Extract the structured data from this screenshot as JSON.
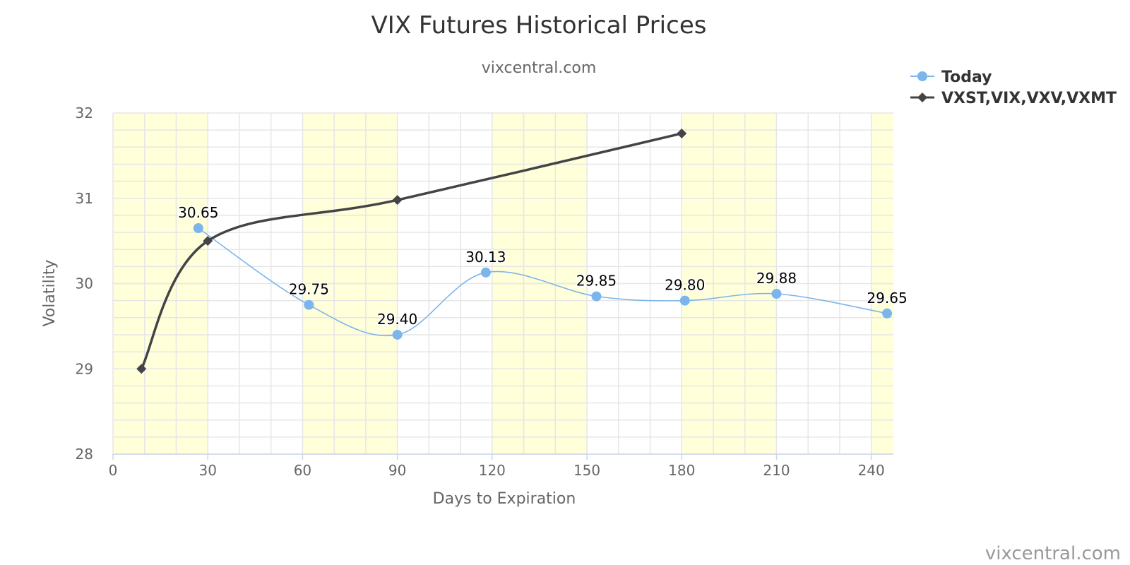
{
  "chart_data": {
    "type": "line",
    "title": "VIX Futures Historical Prices",
    "subtitle": "vixcentral.com",
    "xlabel": "Days to Expiration",
    "ylabel": "Volatility",
    "xlim": [
      0,
      247
    ],
    "ylim": [
      28,
      32
    ],
    "x_ticks": [
      0,
      30,
      60,
      90,
      120,
      150,
      180,
      210,
      240
    ],
    "y_ticks": [
      28,
      29,
      30,
      31,
      32
    ],
    "grid": true,
    "legend_position": "top-right",
    "x_bands": [
      [
        0,
        30
      ],
      [
        60,
        90
      ],
      [
        120,
        150
      ],
      [
        180,
        210
      ],
      [
        240,
        247
      ]
    ],
    "band_color": "#ffffd9",
    "series": [
      {
        "name": "Today",
        "color": "#7cb5ec",
        "marker": "circle",
        "x": [
          27,
          62,
          90,
          118,
          153,
          181,
          210,
          245
        ],
        "values": [
          30.65,
          29.75,
          29.4,
          30.13,
          29.85,
          29.8,
          29.88,
          29.65
        ],
        "labels": [
          "30.65",
          "29.75",
          "29.40",
          "30.13",
          "29.85",
          "29.80",
          "29.88",
          "29.65"
        ]
      },
      {
        "name": "VXST,VIX,VXV,VXMT",
        "color": "#434348",
        "marker": "diamond",
        "x": [
          9,
          30,
          90,
          180
        ],
        "values": [
          29.0,
          30.5,
          30.98,
          31.76
        ]
      }
    ],
    "credit": "vixcentral.com"
  }
}
